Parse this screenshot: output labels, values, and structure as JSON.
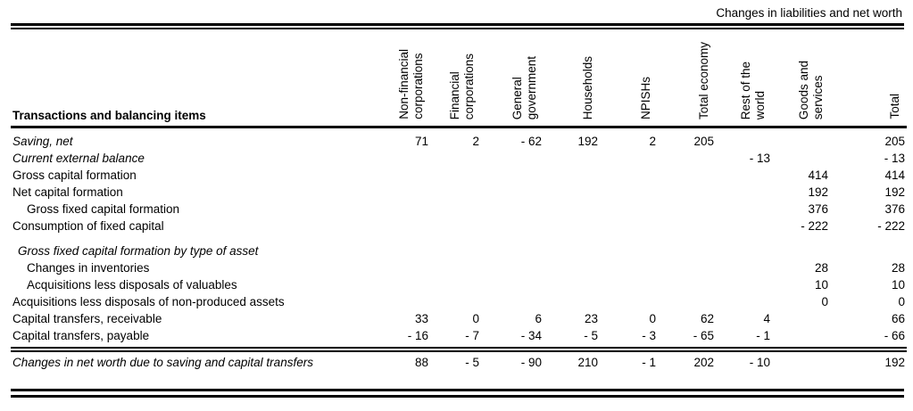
{
  "page_title": "Changes in liabilities and net worth",
  "table": {
    "stub_header": "Transactions and balancing items",
    "columns": [
      {
        "label": "Non-financial corporations",
        "lines": [
          "Non-financial",
          "corporations"
        ]
      },
      {
        "label": "Financial corporations",
        "lines": [
          "Financial",
          "corporations"
        ]
      },
      {
        "label": "General government",
        "lines": [
          "General",
          "government"
        ]
      },
      {
        "label": "Households",
        "lines": [
          "Households"
        ]
      },
      {
        "label": "NPISHs",
        "lines": [
          "NPISHs"
        ]
      },
      {
        "label": "Total economy",
        "lines": [
          "Total economy"
        ]
      },
      {
        "label": "Rest of the world",
        "lines": [
          "Rest of the",
          "world"
        ]
      },
      {
        "label": "Goods and services",
        "lines": [
          "Goods and",
          "services"
        ]
      },
      {
        "label": "Total",
        "lines": [
          "Total"
        ]
      }
    ],
    "rows": [
      {
        "label": "Saving, net",
        "style": "italic",
        "indent": 0,
        "gap_before": false,
        "values": [
          "71",
          "2",
          "- 62",
          "192",
          "2",
          "205",
          "",
          "",
          "205"
        ]
      },
      {
        "label": "Current external balance",
        "style": "italic",
        "indent": 0,
        "gap_before": false,
        "values": [
          "",
          "",
          "",
          "",
          "",
          "",
          "- 13",
          "",
          "- 13"
        ]
      },
      {
        "label": "Gross capital formation",
        "style": "normal",
        "indent": 0,
        "gap_before": false,
        "values": [
          "",
          "",
          "",
          "",
          "",
          "",
          "",
          "414",
          "414"
        ]
      },
      {
        "label": "Net capital formation",
        "style": "normal",
        "indent": 0,
        "gap_before": false,
        "values": [
          "",
          "",
          "",
          "",
          "",
          "",
          "",
          "192",
          "192"
        ]
      },
      {
        "label": "Gross fixed capital formation",
        "style": "normal",
        "indent": 2,
        "gap_before": false,
        "values": [
          "",
          "",
          "",
          "",
          "",
          "",
          "",
          "376",
          "376"
        ]
      },
      {
        "label": "Consumption of fixed capital",
        "style": "normal",
        "indent": 0,
        "gap_before": false,
        "values": [
          "",
          "",
          "",
          "",
          "",
          "",
          "",
          "- 222",
          "- 222"
        ]
      },
      {
        "label": "Gross fixed capital formation by type of asset",
        "style": "italic",
        "indent": 1,
        "gap_before": true,
        "values": [
          "",
          "",
          "",
          "",
          "",
          "",
          "",
          "",
          ""
        ]
      },
      {
        "label": "Changes in inventories",
        "style": "normal",
        "indent": 2,
        "gap_before": false,
        "values": [
          "",
          "",
          "",
          "",
          "",
          "",
          "",
          "28",
          "28"
        ]
      },
      {
        "label": "Acquisitions less disposals of valuables",
        "style": "normal",
        "indent": 2,
        "gap_before": false,
        "values": [
          "",
          "",
          "",
          "",
          "",
          "",
          "",
          "10",
          "10"
        ]
      },
      {
        "label": "Acquisitions less disposals of non-produced assets",
        "style": "normal",
        "indent": 0,
        "gap_before": false,
        "values": [
          "",
          "",
          "",
          "",
          "",
          "",
          "",
          "0",
          "0"
        ]
      },
      {
        "label": "Capital transfers, receivable",
        "style": "normal",
        "indent": 0,
        "gap_before": false,
        "values": [
          "33",
          "0",
          "6",
          "23",
          "0",
          "62",
          "4",
          "",
          "66"
        ]
      },
      {
        "label": "Capital transfers, payable",
        "style": "normal",
        "indent": 0,
        "gap_before": false,
        "values": [
          "- 16",
          "- 7",
          "- 34",
          "- 5",
          "- 3",
          "- 65",
          "- 1",
          "",
          "- 66"
        ]
      }
    ],
    "footer_row": {
      "label": "Changes in net worth due to saving and capital transfers",
      "style": "italic",
      "values": [
        "88",
        "- 5",
        "- 90",
        "210",
        "- 1",
        "202",
        "- 10",
        "",
        "192"
      ]
    }
  }
}
